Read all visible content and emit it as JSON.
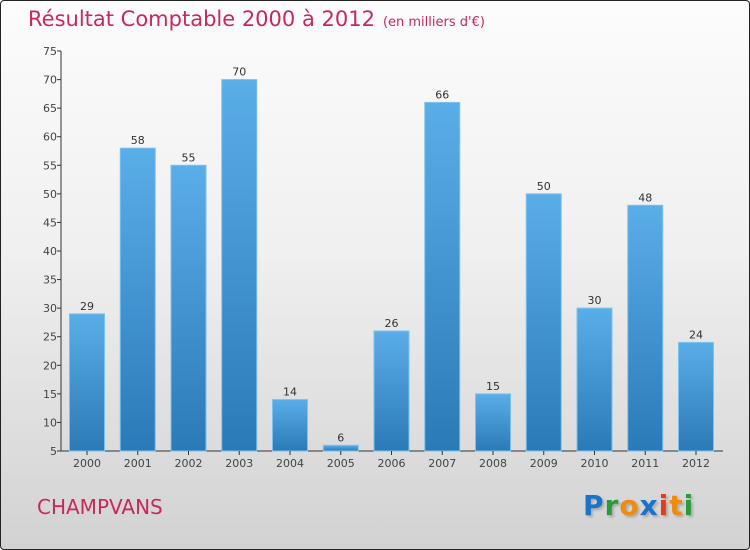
{
  "chart_data": {
    "type": "bar",
    "title": "Résultat Comptable 2000 à 2012",
    "subtitle": "(en milliers d'€)",
    "categories": [
      "2000",
      "2001",
      "2002",
      "2003",
      "2004",
      "2005",
      "2006",
      "2007",
      "2008",
      "2009",
      "2010",
      "2011",
      "2012"
    ],
    "values": [
      29,
      58,
      55,
      70,
      14,
      6,
      26,
      66,
      15,
      50,
      30,
      48,
      24
    ],
    "ylim": [
      5,
      75
    ],
    "yticks": [
      5,
      10,
      15,
      20,
      25,
      30,
      35,
      40,
      45,
      50,
      55,
      60,
      65,
      70,
      75
    ],
    "grid": false,
    "bar_color_top": "#5aaee8",
    "bar_color_bottom": "#2a7ab8"
  },
  "commune": "CHAMPVANS",
  "logo": {
    "text": "Proxiti",
    "letters": [
      [
        "P",
        "#1a73c8"
      ],
      [
        "r",
        "#2a9a3a"
      ],
      [
        "o",
        "#f08a10"
      ],
      [
        "x",
        "#1a73c8"
      ],
      [
        "i",
        "#e83a1a"
      ],
      [
        "t",
        "#f08a10"
      ],
      [
        "i",
        "#2a9a3a"
      ]
    ]
  }
}
